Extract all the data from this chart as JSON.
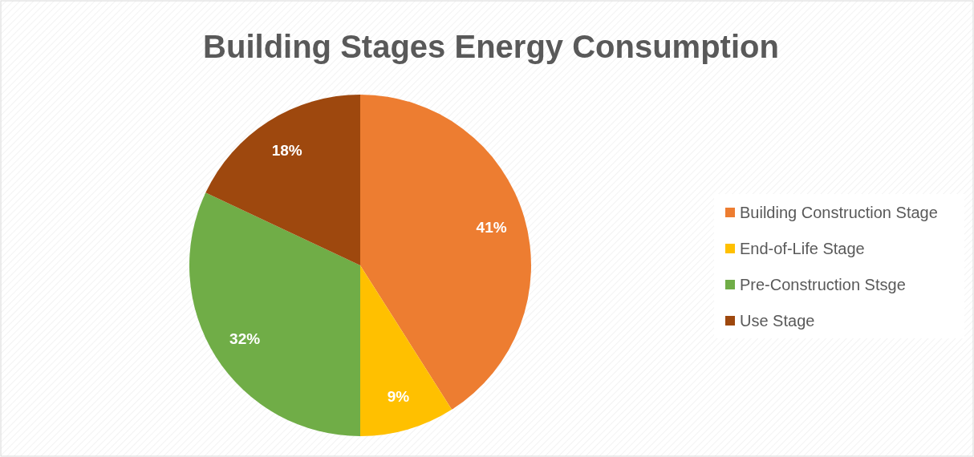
{
  "chart_data": {
    "type": "pie",
    "title": "Building Stages Energy Consumption",
    "categories": [
      "Building Construction Stage",
      "End-of-Life Stage",
      "Pre-Construction Stsge",
      "Use Stage"
    ],
    "values": [
      41,
      9,
      32,
      18
    ],
    "colors": [
      "#ed7d31",
      "#ffc000",
      "#70ad47",
      "#9e480e"
    ],
    "value_labels": [
      "41%",
      "9%",
      "32%",
      "18%"
    ],
    "legend": "right"
  }
}
